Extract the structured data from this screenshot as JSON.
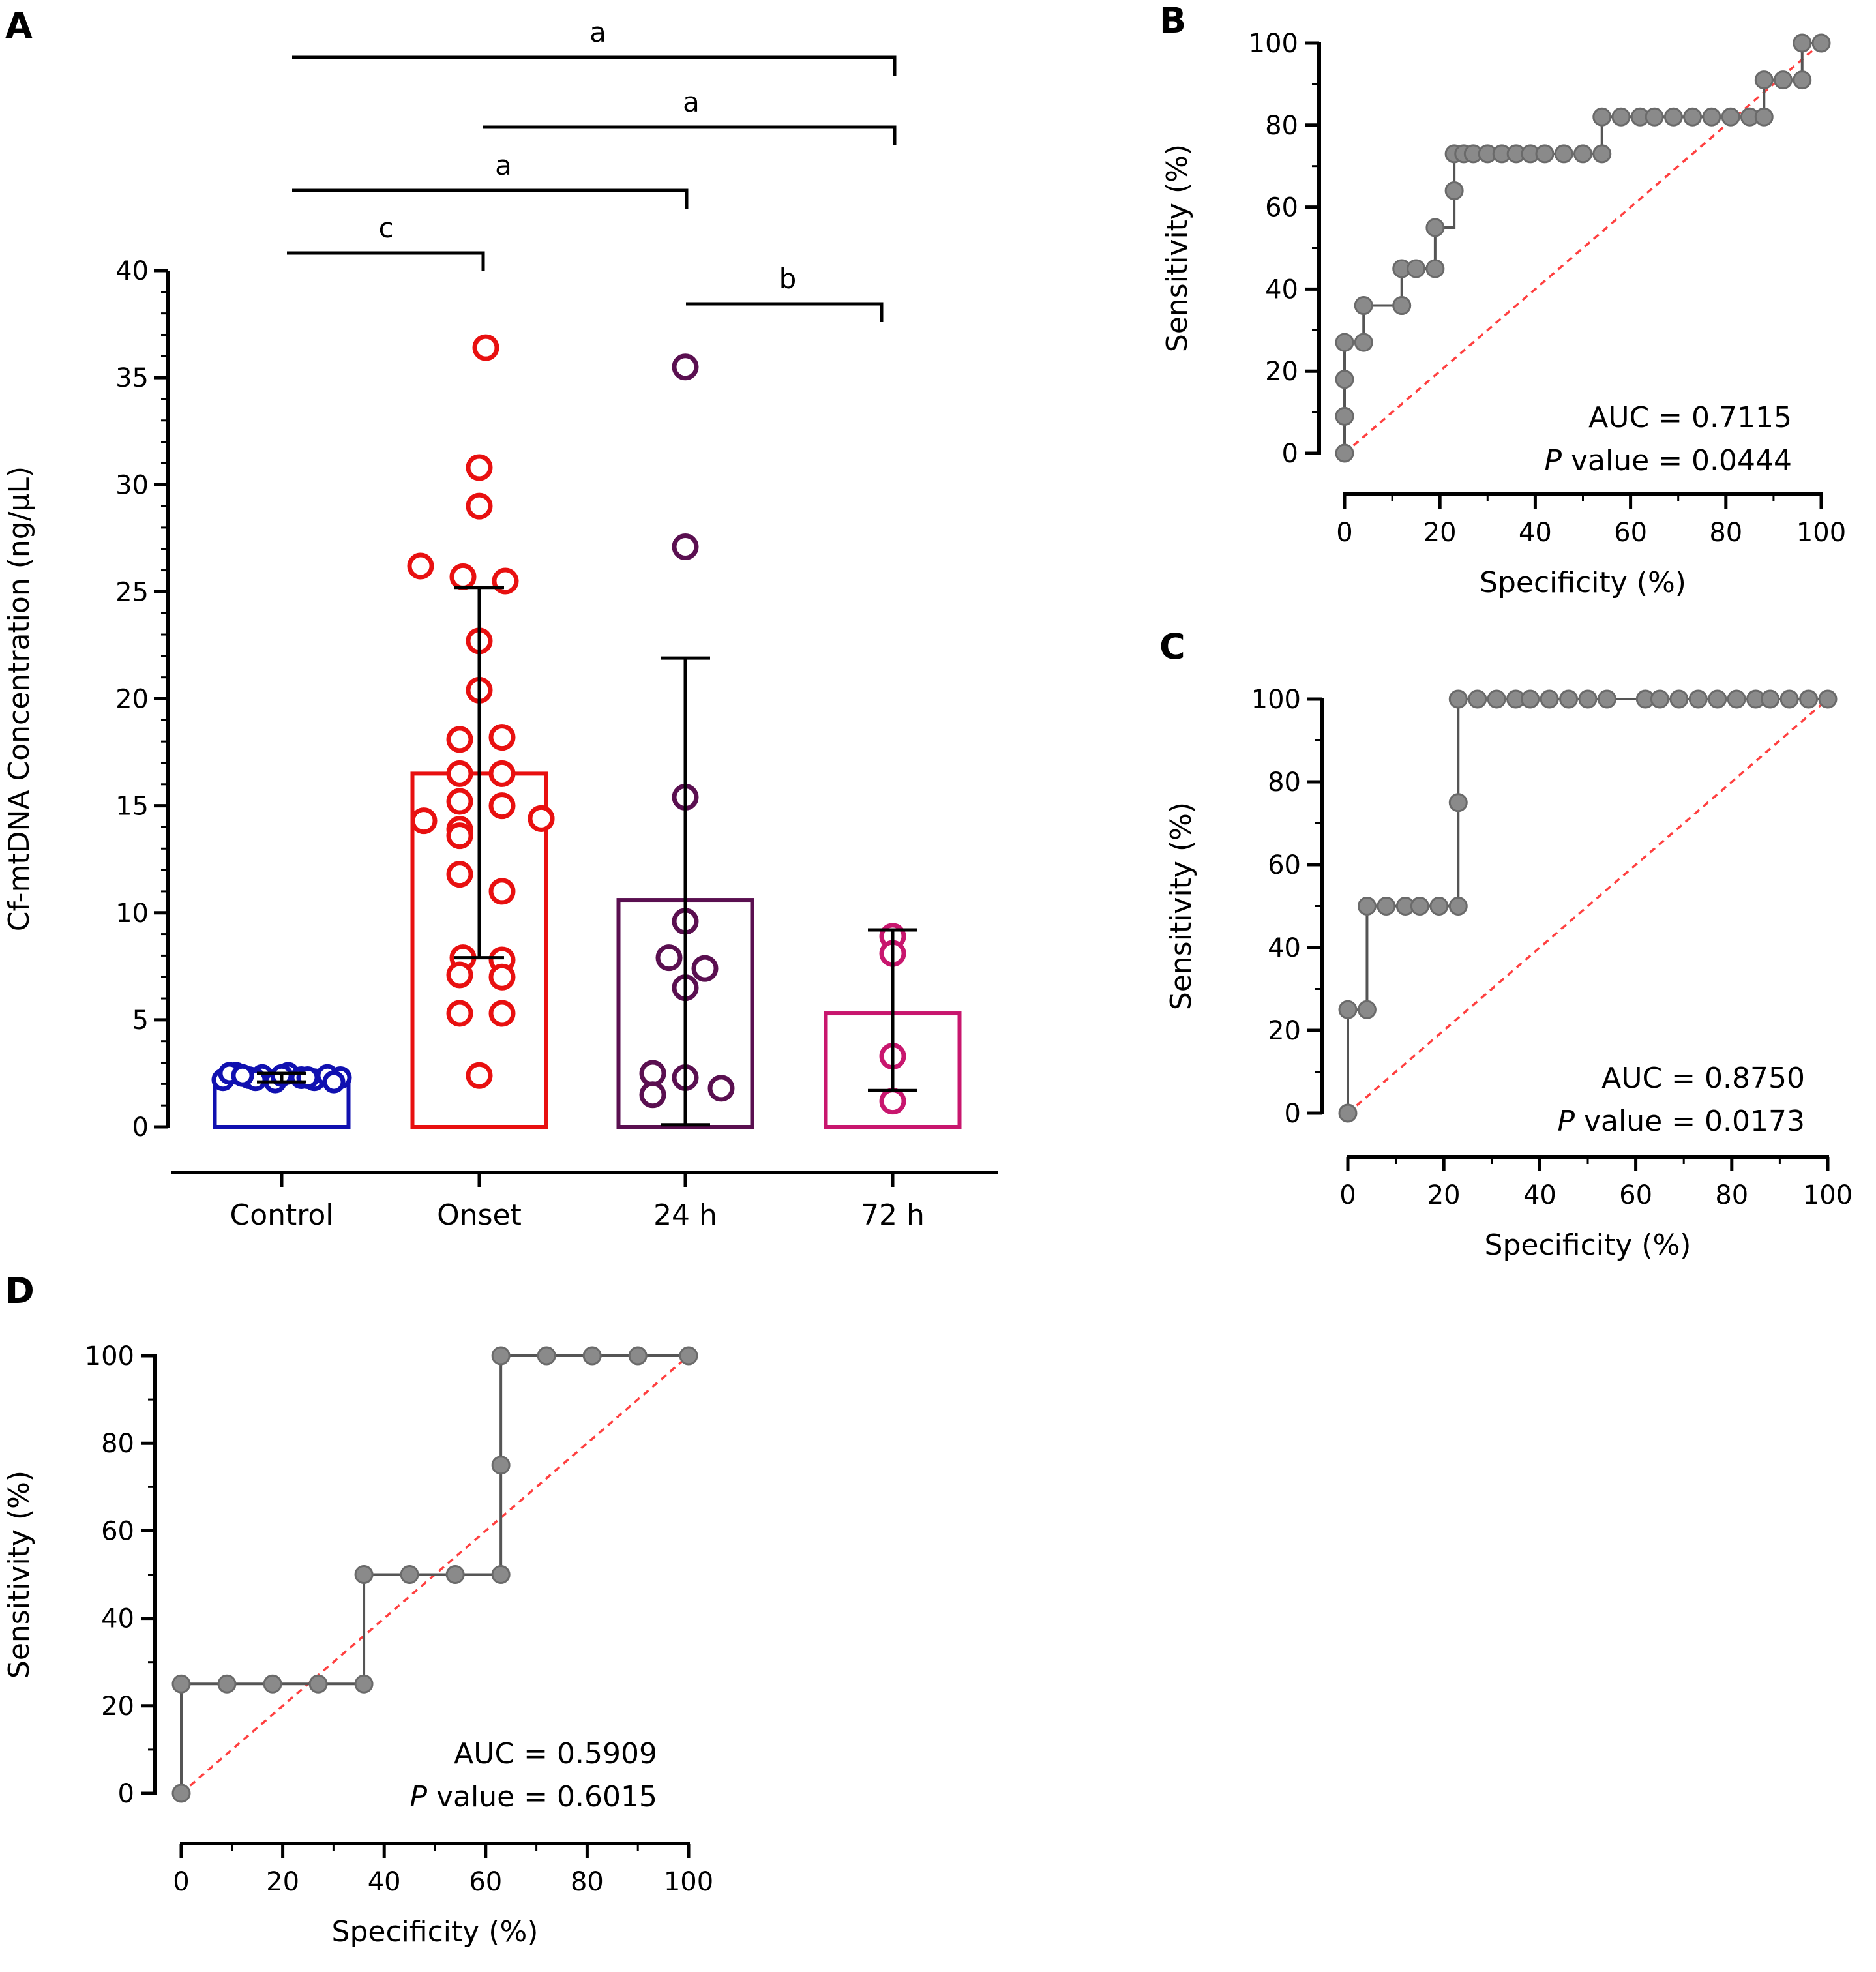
{
  "panels": {
    "a": "A",
    "b": "B",
    "c": "C",
    "d": "D"
  },
  "chart_data": [
    {
      "panel": "A",
      "type": "bar",
      "ylabel": "Cf-mtDNA Concentration (ng/µL)",
      "xlabel": "",
      "ylim": [
        0,
        40
      ],
      "yticks": [
        0,
        5,
        10,
        15,
        20,
        25,
        30,
        35,
        40
      ],
      "categories": [
        "Control",
        "Onset",
        "24 h",
        "72 h"
      ],
      "colors": [
        "#1010b0",
        "#e81010",
        "#5a0f50",
        "#c8166e"
      ],
      "means": [
        2.3,
        16.5,
        10.6,
        5.3
      ],
      "error_low": [
        2.1,
        7.9,
        0.1,
        1.7
      ],
      "error_high": [
        2.5,
        25.2,
        21.9,
        9.2
      ],
      "points": [
        [
          2.2,
          2.5,
          2.3,
          2.4,
          2.1,
          2.5,
          2.3,
          2.2,
          2.4,
          2.3,
          2.5,
          2.2,
          2.4,
          2.3,
          2.1,
          2.4
        ],
        [
          36.4,
          30.8,
          29.0,
          26.2,
          25.7,
          25.5,
          22.7,
          20.4,
          18.1,
          18.2,
          16.5,
          16.5,
          15.2,
          15.0,
          14.4,
          14.3,
          14.4,
          13.9,
          13.6,
          11.8,
          11.0,
          7.9,
          7.8,
          7.1,
          7.0,
          5.3,
          5.3,
          2.4
        ],
        [
          35.5,
          27.1,
          15.4,
          9.6,
          7.9,
          7.4,
          6.5,
          2.5,
          2.3,
          1.8,
          1.5
        ],
        [
          8.9,
          8.1,
          3.3,
          1.2
        ]
      ],
      "significance": [
        {
          "from": "Control",
          "to": "72 h",
          "label": "a"
        },
        {
          "from": "Onset",
          "to": "72 h",
          "label": "a"
        },
        {
          "from": "Control",
          "to": "24 h",
          "label": "a"
        },
        {
          "from": "Control",
          "to": "Onset",
          "label": "c"
        },
        {
          "from": "24 h",
          "to": "72 h",
          "label": "b"
        }
      ]
    },
    {
      "panel": "B",
      "type": "line",
      "xlabel": "Specificity (%)",
      "ylabel": "Sensitivity (%)",
      "xlim": [
        0,
        100
      ],
      "ylim": [
        0,
        100
      ],
      "xticks": [
        0,
        20,
        40,
        60,
        80,
        100
      ],
      "yticks": [
        0,
        20,
        40,
        60,
        80,
        100
      ],
      "reference_line": [
        [
          0,
          0
        ],
        [
          100,
          100
        ]
      ],
      "x": [
        0,
        0,
        0,
        0,
        4,
        4,
        12,
        12,
        15,
        19,
        19,
        23,
        23,
        25,
        27,
        30,
        33,
        36,
        39,
        42,
        46,
        50,
        54,
        54,
        58,
        62,
        65,
        69,
        73,
        77,
        81,
        85,
        88,
        88,
        92,
        96,
        96,
        100
      ],
      "y": [
        0,
        9,
        18,
        27,
        27,
        36,
        36,
        45,
        45,
        45,
        55,
        64,
        73,
        73,
        73,
        73,
        73,
        73,
        73,
        73,
        73,
        73,
        73,
        82,
        82,
        82,
        82,
        82,
        82,
        82,
        82,
        82,
        82,
        91,
        91,
        91,
        100,
        100
      ],
      "annotation": {
        "auc": "AUC = 0.7115",
        "p_prefix": "P",
        "p_rest": " value = 0.0444"
      }
    },
    {
      "panel": "C",
      "type": "line",
      "xlabel": "Specificity (%)",
      "ylabel": "Sensitivity (%)",
      "xlim": [
        0,
        100
      ],
      "ylim": [
        0,
        100
      ],
      "xticks": [
        0,
        20,
        40,
        60,
        80,
        100
      ],
      "yticks": [
        0,
        20,
        40,
        60,
        80,
        100
      ],
      "reference_line": [
        [
          0,
          0
        ],
        [
          100,
          100
        ]
      ],
      "x": [
        0,
        0,
        4,
        4,
        8,
        12,
        15,
        19,
        23,
        23,
        23,
        27,
        31,
        35,
        38,
        42,
        46,
        50,
        54,
        62,
        65,
        69,
        73,
        77,
        81,
        85,
        88,
        92,
        96,
        100
      ],
      "y": [
        0,
        25,
        25,
        50,
        50,
        50,
        50,
        50,
        50,
        75,
        100,
        100,
        100,
        100,
        100,
        100,
        100,
        100,
        100,
        100,
        100,
        100,
        100,
        100,
        100,
        100,
        100,
        100,
        100,
        100
      ],
      "annotation": {
        "auc": "AUC = 0.8750",
        "p_prefix": "P",
        "p_rest": " value = 0.0173"
      }
    },
    {
      "panel": "D",
      "type": "line",
      "xlabel": "Specificity (%)",
      "ylabel": "Sensitivity (%)",
      "xlim": [
        0,
        100
      ],
      "ylim": [
        0,
        100
      ],
      "xticks": [
        0,
        20,
        40,
        60,
        80,
        100
      ],
      "yticks": [
        0,
        20,
        40,
        60,
        80,
        100
      ],
      "reference_line": [
        [
          0,
          0
        ],
        [
          100,
          100
        ]
      ],
      "x": [
        0,
        0,
        9,
        18,
        27,
        36,
        36,
        45,
        54,
        63,
        63,
        63,
        72,
        81,
        90,
        100
      ],
      "y": [
        0,
        25,
        25,
        25,
        25,
        25,
        50,
        50,
        50,
        50,
        75,
        100,
        100,
        100,
        100,
        100
      ],
      "annotation": {
        "auc": "AUC = 0.5909",
        "p_prefix": "P",
        "p_rest": " value = 0.6015"
      }
    }
  ]
}
